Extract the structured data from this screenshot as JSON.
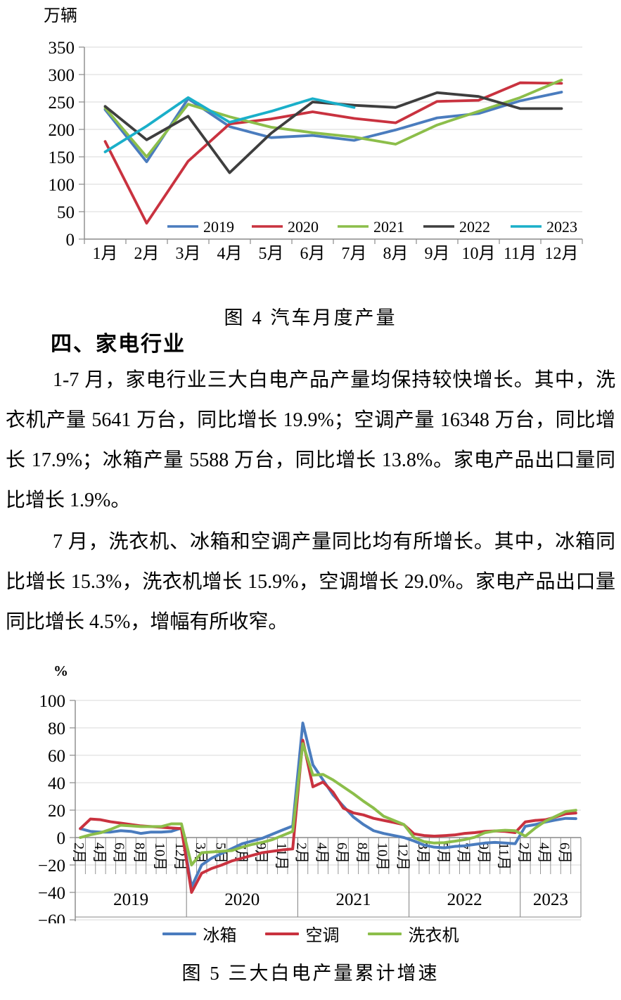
{
  "page": {
    "caption_fig4": "图 4  汽车月度产量",
    "section_heading": "四、家电行业",
    "para1": "1-7 月，家电行业三大白电产品产量均保持较快增长。其中，洗衣机产量 5641 万台，同比增长 19.9%；空调产量 16348 万台，同比增长 17.9%；冰箱产量 5588 万台，同比增长 13.8%。家电产品出口量同比增长 1.9%。",
    "para2": "7 月，洗衣机、冰箱和空调产量同比均有所增长。其中，冰箱同比增长 15.3%，洗衣机增长 15.9%，空调增长 29.0%。家电产品出口量同比增长 4.5%，增幅有所收窄。",
    "caption_fig5": "图 5  三大白电产量累计增速"
  },
  "colors": {
    "blue": "#4A7CBE",
    "red": "#C9323F",
    "green": "#8CBE4A",
    "black": "#3E3E3E",
    "cyan": "#1AAFC9",
    "grid": "#D9D9D9",
    "axis": "#8A8A8A"
  },
  "chart_data": [
    {
      "type": "line",
      "title": "汽车月度产量",
      "unit_label": "万辆",
      "ylabel": "万辆",
      "xlabel": "",
      "grid": true,
      "legend_position": "bottom-inside",
      "y_axis": {
        "min": 0,
        "max": 350,
        "step": 50
      },
      "categories": [
        "1月",
        "2月",
        "3月",
        "4月",
        "5月",
        "6月",
        "7月",
        "8月",
        "9月",
        "10月",
        "11月",
        "12月"
      ],
      "series": [
        {
          "name": "2019",
          "color": "#4A7CBE",
          "values": [
            236,
            141,
            256,
            205,
            185,
            189,
            180,
            199,
            221,
            229,
            252,
            268
          ]
        },
        {
          "name": "2020",
          "color": "#C9323F",
          "values": [
            178,
            29,
            142,
            210,
            219,
            232,
            220,
            212,
            251,
            253,
            285,
            284
          ]
        },
        {
          "name": "2021",
          "color": "#8CBE4A",
          "values": [
            239,
            150,
            246,
            223,
            204,
            194,
            186,
            173,
            208,
            233,
            258,
            290
          ]
        },
        {
          "name": "2022",
          "color": "#3E3E3E",
          "values": [
            242,
            181,
            224,
            121,
            193,
            250,
            244,
            240,
            267,
            260,
            238,
            238
          ]
        },
        {
          "name": "2023",
          "color": "#1AAFC9",
          "values": [
            159,
            206,
            258,
            213,
            233,
            256,
            240
          ]
        }
      ]
    },
    {
      "type": "line",
      "title": "三大白电产量累计增速",
      "unit_label": "%",
      "ylabel": "%",
      "xlabel": "",
      "grid": true,
      "legend_position": "bottom-outside",
      "y_axis": {
        "min": -60,
        "max": 100,
        "step": 20
      },
      "year_groups": [
        {
          "label": "2019",
          "months": [
            "2月",
            "3月",
            "4月",
            "5月",
            "6月",
            "7月",
            "8月",
            "9月",
            "10月",
            "11月",
            "12月"
          ]
        },
        {
          "label": "2020",
          "months": [
            "2月",
            "3月",
            "4月",
            "5月",
            "6月",
            "7月",
            "8月",
            "9月",
            "10月",
            "11月",
            "12月"
          ]
        },
        {
          "label": "2021",
          "months": [
            "2月",
            "3月",
            "4月",
            "5月",
            "6月",
            "7月",
            "8月",
            "9月",
            "10月",
            "11月",
            "12月"
          ]
        },
        {
          "label": "2022",
          "months": [
            "2月",
            "3月",
            "4月",
            "5月",
            "6月",
            "7月",
            "8月",
            "9月",
            "10月",
            "11月",
            "12月"
          ]
        },
        {
          "label": "2023",
          "months": [
            "2月",
            "3月",
            "4月",
            "5月",
            "6月",
            "7月"
          ]
        }
      ],
      "labeled_indices": [
        0,
        2,
        4,
        6,
        8,
        10,
        12,
        14,
        16,
        18,
        20,
        22,
        24,
        26,
        28,
        30,
        32,
        34,
        36,
        38,
        40,
        42,
        44,
        46,
        48
      ],
      "series": [
        {
          "name": "冰箱",
          "color": "#4A7CBE",
          "values": [
            6.5,
            4.5,
            4,
            4,
            5,
            4.5,
            3,
            4,
            4,
            4.5,
            7,
            -36,
            -20,
            -15,
            -11.5,
            -8,
            -4.5,
            -2.5,
            -0.5,
            2.5,
            5.5,
            8.4,
            83.5,
            53,
            42,
            31,
            23,
            15,
            9.5,
            5,
            3,
            1.5,
            0,
            -2.5,
            -5.5,
            -7,
            -7.5,
            -6.5,
            -6,
            -5,
            -4,
            -3.5,
            -4,
            -4.5,
            8.2,
            9.5,
            11.3,
            12.8,
            14,
            13.8
          ]
        },
        {
          "name": "空调",
          "color": "#C9323F",
          "values": [
            6.5,
            13.5,
            13,
            11.5,
            10.5,
            9.5,
            8.5,
            8,
            7.5,
            7,
            6.5,
            -40,
            -26,
            -22.5,
            -20,
            -17,
            -15,
            -13,
            -11,
            -10,
            -9,
            -8.3,
            71,
            37,
            40.5,
            33,
            21.5,
            18,
            16.5,
            14,
            12.5,
            11,
            9.4,
            2.7,
            1.5,
            1,
            1.4,
            1.9,
            3,
            3.6,
            4.5,
            4.8,
            4.5,
            3.6,
            11.4,
            12.5,
            13,
            15,
            17.3,
            17.9
          ]
        },
        {
          "name": "洗衣机",
          "color": "#8CBE4A",
          "values": [
            0,
            2,
            3.5,
            6,
            9,
            8.5,
            8,
            8,
            8,
            10,
            10,
            -20,
            -11,
            -10.5,
            -10,
            -9.5,
            -7,
            -5,
            -3.5,
            -1.5,
            1.5,
            4.5,
            68.5,
            45.5,
            46,
            42,
            37,
            32,
            26.5,
            21.5,
            15.5,
            12.5,
            9.5,
            0,
            -3,
            -4,
            -3.7,
            -2.7,
            -1.5,
            0.2,
            3.5,
            4.8,
            5.3,
            5,
            1,
            7,
            12,
            15.5,
            19,
            19.9
          ]
        }
      ]
    }
  ]
}
